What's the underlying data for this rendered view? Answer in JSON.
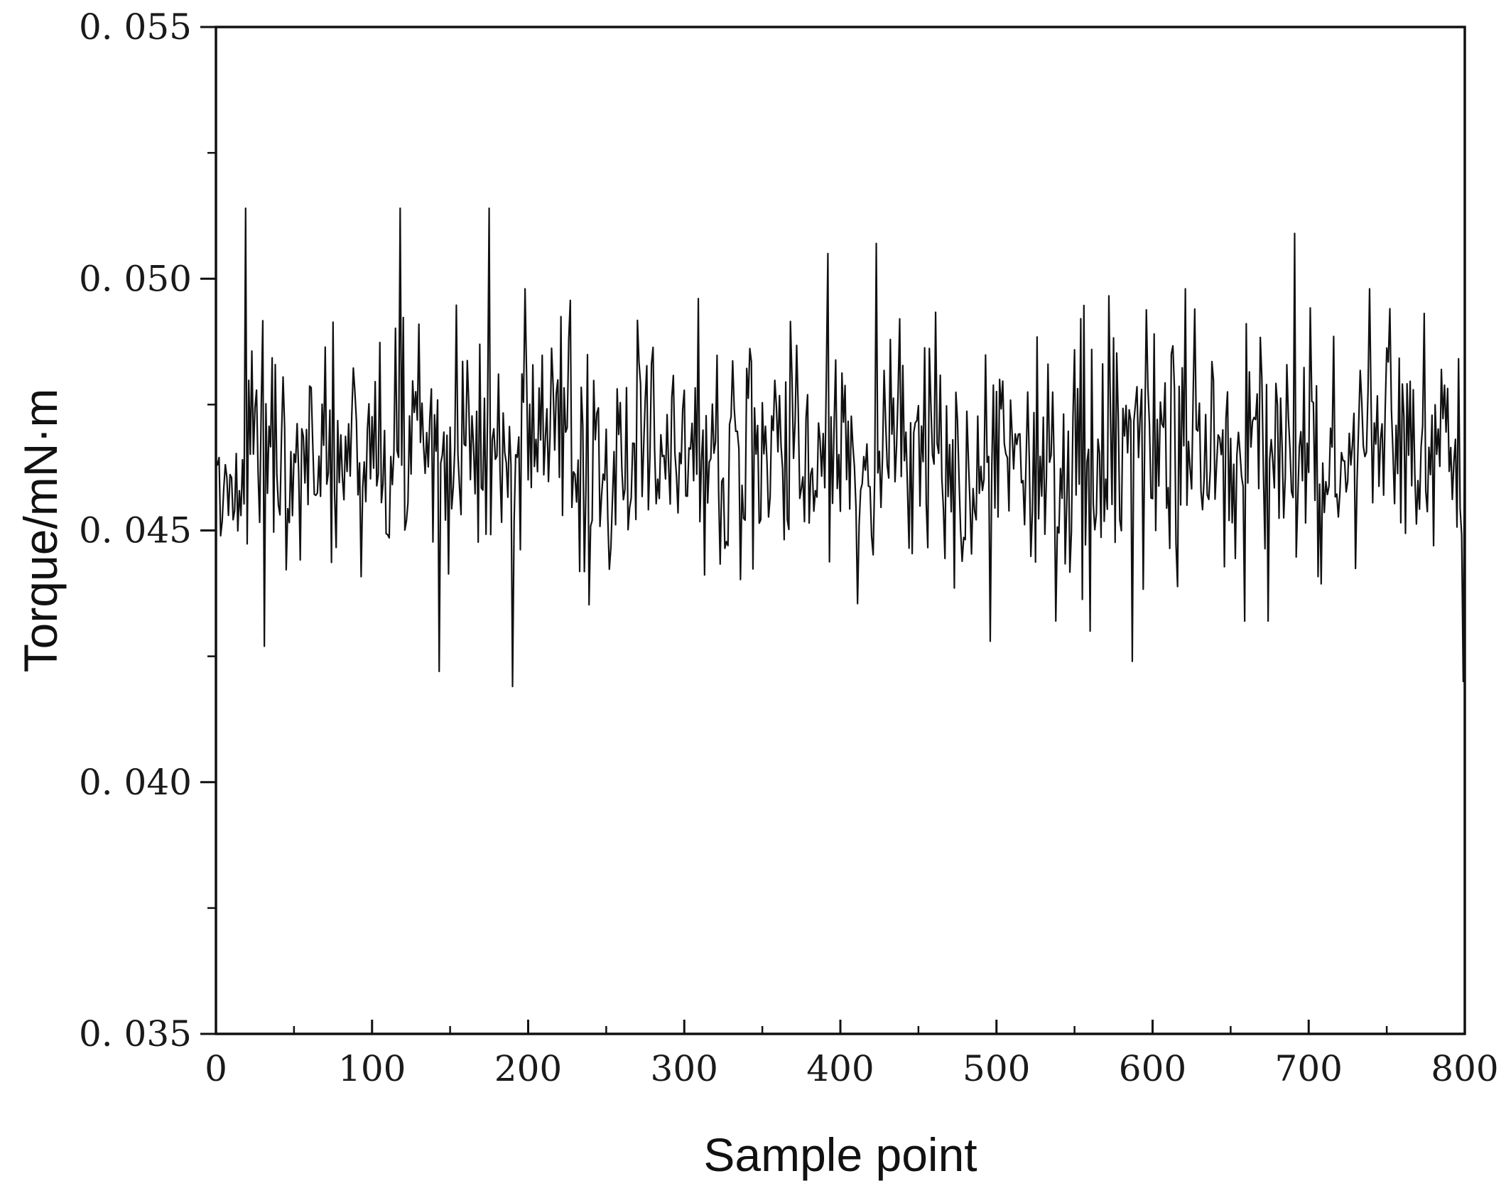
{
  "chart_data": {
    "type": "line",
    "title": "",
    "xlabel": "Sample point",
    "ylabel": "Torque/mN·m",
    "xlim": [
      0,
      800
    ],
    "ylim": [
      0.035,
      0.055
    ],
    "x_ticks": [
      0,
      100,
      200,
      300,
      400,
      500,
      600,
      700,
      800
    ],
    "x_tick_labels": [
      "0",
      "100",
      "200",
      "300",
      "400",
      "500",
      "600",
      "700",
      "800"
    ],
    "y_ticks": [
      0.035,
      0.04,
      0.045,
      0.05,
      0.055
    ],
    "y_tick_labels": [
      "0. 035",
      "0. 040",
      "0. 045",
      "0. 050",
      "0. 055"
    ],
    "grid": false,
    "legend": "none",
    "line_color": "#111111",
    "sample_count": 801,
    "mean": 0.0466,
    "spikes": [
      {
        "x": 19,
        "y": 0.0514
      },
      {
        "x": 118,
        "y": 0.0514
      },
      {
        "x": 175,
        "y": 0.0514
      },
      {
        "x": 392,
        "y": 0.0505
      },
      {
        "x": 423,
        "y": 0.0507
      },
      {
        "x": 691,
        "y": 0.0509
      },
      {
        "x": 31,
        "y": 0.0427
      },
      {
        "x": 143,
        "y": 0.0422
      },
      {
        "x": 190,
        "y": 0.0419
      },
      {
        "x": 496,
        "y": 0.0428
      },
      {
        "x": 560,
        "y": 0.043
      },
      {
        "x": 587,
        "y": 0.0424
      },
      {
        "x": 799,
        "y": 0.042
      }
    ]
  }
}
